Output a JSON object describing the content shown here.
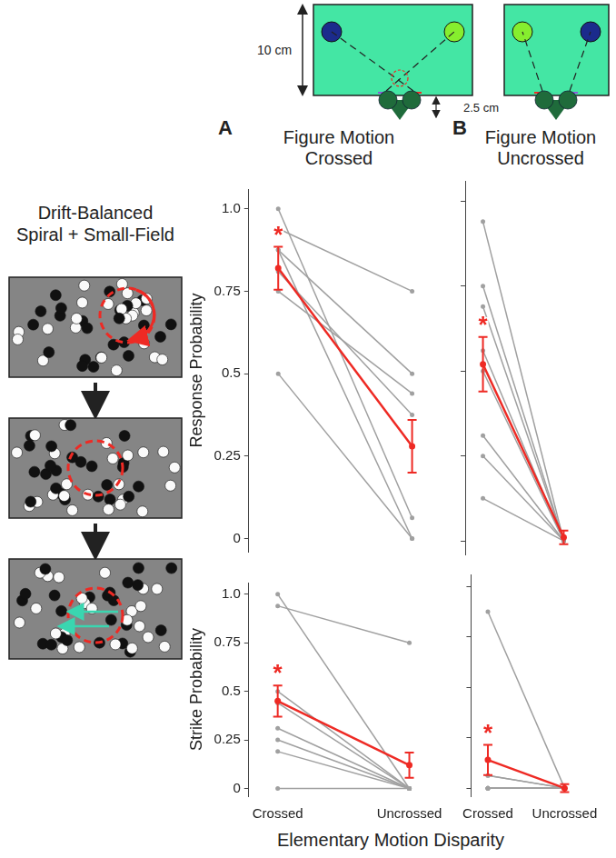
{
  "diagram": {
    "dimensions": [
      "10 cm",
      "2.5 cm"
    ],
    "stimulus_title": "Drift-Balanced Spiral + Small-Field"
  },
  "figure": {
    "panels": [
      {
        "letter": "A",
        "title": "Figure Motion Crossed"
      },
      {
        "letter": "B",
        "title": "Figure Motion Uncrossed"
      }
    ],
    "x_label": "Elementary Motion Disparity"
  },
  "chart_data": [
    {
      "type": "line",
      "y_label": "Response Probability",
      "categories": [
        "Crossed",
        "Uncrossed"
      ],
      "ylim": [
        -0.04,
        1.06
      ],
      "yticks": [
        0,
        0.25,
        0.5,
        0.75,
        {
          "value": 1,
          "label": "1.0"
        }
      ],
      "grid": false,
      "tick_labels": "y",
      "marker": "circle",
      "series": [
        {
          "color": "#a0a0a0",
          "values": [
            1.0,
            0.0625
          ]
        },
        {
          "color": "#a0a0a0",
          "values": [
            0.94,
            0.75
          ]
        },
        {
          "color": "#a0a0a0",
          "values": [
            0.875,
            0.5
          ]
        },
        {
          "color": "#a0a0a0",
          "values": [
            0.875,
            0.0
          ]
        },
        {
          "color": "#a0a0a0",
          "values": [
            0.81,
            0.375
          ]
        },
        {
          "color": "#a0a0a0",
          "values": [
            0.75,
            0.44
          ]
        },
        {
          "color": "#a0a0a0",
          "values": [
            0.5,
            0.0
          ]
        },
        {
          "color": "#ee2a24",
          "values": [
            0.82,
            0.28
          ],
          "error": [
            0.065,
            0.08
          ]
        }
      ],
      "annotations": [
        {
          "text": "*",
          "x": "Crossed"
        }
      ]
    },
    {
      "type": "line",
      "categories": [
        "Crossed",
        "Uncrossed"
      ],
      "ylim": [
        -0.04,
        1.06
      ],
      "yticks": [
        0,
        0.25,
        0.5,
        0.75,
        {
          "value": 1,
          "label": "1.0"
        }
      ],
      "grid": false,
      "tick_labels": false,
      "marker": "circle",
      "series": [
        {
          "color": "#a0a0a0",
          "values": [
            0.94,
            0.0
          ]
        },
        {
          "color": "#a0a0a0",
          "values": [
            0.75,
            0.0
          ]
        },
        {
          "color": "#a0a0a0",
          "values": [
            0.69,
            0.0
          ]
        },
        {
          "color": "#a0a0a0",
          "values": [
            0.56,
            0.0
          ]
        },
        {
          "color": "#a0a0a0",
          "values": [
            0.5,
            0.0
          ]
        },
        {
          "color": "#a0a0a0",
          "values": [
            0.31,
            0.0
          ]
        },
        {
          "color": "#a0a0a0",
          "values": [
            0.25,
            0.0
          ]
        },
        {
          "color": "#a0a0a0",
          "values": [
            0.125,
            0.0
          ]
        },
        {
          "color": "#ee2a24",
          "values": [
            0.52,
            0.01
          ],
          "error": [
            0.08,
            0.02
          ]
        }
      ],
      "annotations": [
        {
          "text": "*",
          "x": "Crossed"
        }
      ]
    },
    {
      "type": "line",
      "y_label": "Strike Probability",
      "categories": [
        "Crossed",
        "Uncrossed"
      ],
      "ylim": [
        -0.04,
        1.06
      ],
      "yticks": [
        0,
        0.25,
        0.5,
        0.75,
        {
          "value": 1,
          "label": "1.0"
        }
      ],
      "grid": false,
      "tick_labels": true,
      "marker": "circle",
      "series": [
        {
          "color": "#a0a0a0",
          "values": [
            1.0,
            0.0
          ]
        },
        {
          "color": "#a0a0a0",
          "values": [
            0.94,
            0.75
          ]
        },
        {
          "color": "#a0a0a0",
          "values": [
            0.5,
            0.0
          ]
        },
        {
          "color": "#a0a0a0",
          "values": [
            0.44,
            0.0
          ]
        },
        {
          "color": "#a0a0a0",
          "values": [
            0.31,
            0.0
          ]
        },
        {
          "color": "#a0a0a0",
          "values": [
            0.25,
            0.0
          ]
        },
        {
          "color": "#a0a0a0",
          "values": [
            0.19,
            0.0
          ]
        },
        {
          "color": "#a0a0a0",
          "values": [
            0.0,
            0.0
          ]
        },
        {
          "color": "#ee2a24",
          "values": [
            0.45,
            0.12
          ],
          "error": [
            0.08,
            0.065
          ]
        }
      ],
      "annotations": [
        {
          "text": "*",
          "x": "Crossed"
        }
      ]
    },
    {
      "type": "line",
      "categories": [
        "Crossed",
        "Uncrossed"
      ],
      "ylim": [
        -0.04,
        1.06
      ],
      "yticks": [
        0,
        0.25,
        0.5,
        0.75,
        {
          "value": 1,
          "label": "1.0"
        }
      ],
      "grid": false,
      "tick_labels": "x",
      "marker": "circle",
      "series": [
        {
          "color": "#a0a0a0",
          "values": [
            0.875,
            0.0
          ]
        },
        {
          "color": "#a0a0a0",
          "values": [
            0.0625,
            0.0
          ]
        },
        {
          "color": "#a0a0a0",
          "values": [
            0.0625,
            0.0
          ]
        },
        {
          "color": "#a0a0a0",
          "values": [
            0.0,
            0.0
          ]
        },
        {
          "color": "#a0a0a0",
          "values": [
            0.0,
            0.0
          ]
        },
        {
          "color": "#a0a0a0",
          "values": [
            0.0,
            0.0
          ]
        },
        {
          "color": "#a0a0a0",
          "values": [
            0.0,
            0.0
          ]
        },
        {
          "color": "#a0a0a0",
          "values": [
            0.0,
            0.0
          ]
        },
        {
          "color": "#ee2a24",
          "values": [
            0.14,
            0.0
          ],
          "error": [
            0.075,
            0.02
          ]
        }
      ],
      "annotations": [
        {
          "text": "*",
          "x": "Crossed"
        }
      ]
    }
  ]
}
